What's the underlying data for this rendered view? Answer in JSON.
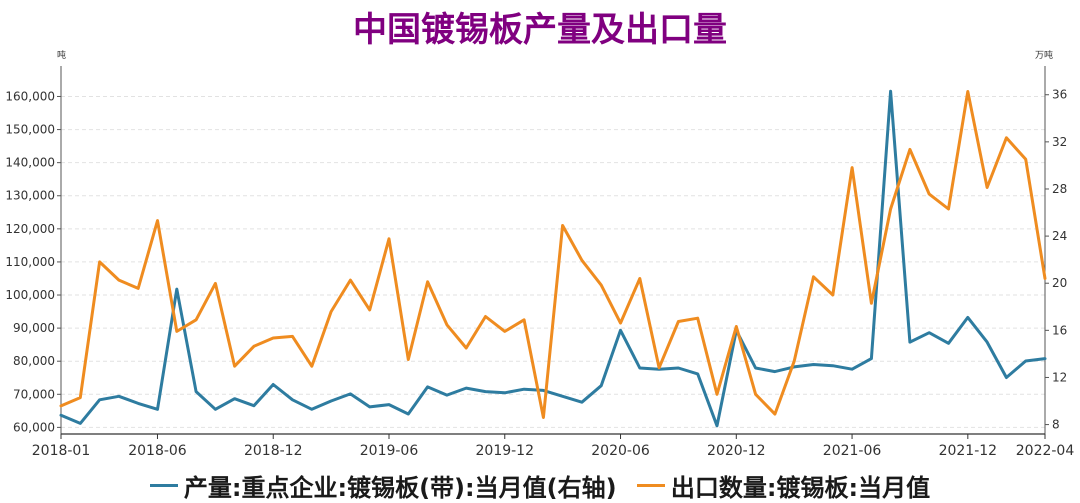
{
  "chart_data": {
    "type": "line",
    "title": "中国镀锡板产量及出口量",
    "left_unit": "吨",
    "right_unit": "万吨",
    "x": [
      "2018-01",
      "2018-02",
      "2018-03",
      "2018-04",
      "2018-05",
      "2018-06",
      "2018-07",
      "2018-08",
      "2018-09",
      "2018-10",
      "2018-11",
      "2018-12",
      "2019-01",
      "2019-02",
      "2019-03",
      "2019-04",
      "2019-05",
      "2019-06",
      "2019-07",
      "2019-08",
      "2019-09",
      "2019-10",
      "2019-11",
      "2019-12",
      "2020-01",
      "2020-02",
      "2020-03",
      "2020-04",
      "2020-05",
      "2020-06",
      "2020-07",
      "2020-08",
      "2020-09",
      "2020-10",
      "2020-11",
      "2020-12",
      "2021-01",
      "2021-02",
      "2021-03",
      "2021-04",
      "2021-05",
      "2021-06",
      "2021-07",
      "2021-08",
      "2021-09",
      "2021-10",
      "2021-11",
      "2021-12",
      "2022-01",
      "2022-02",
      "2022-03",
      "2022-04"
    ],
    "x_tick_labels": [
      "2018-01",
      "2018-06",
      "2018-12",
      "2019-06",
      "2019-12",
      "2020-06",
      "2020-12",
      "2021-06",
      "2021-12",
      "2022-04"
    ],
    "left_axis": {
      "min": 58000,
      "max": 168000,
      "ticks": [
        60000,
        70000,
        80000,
        90000,
        100000,
        110000,
        120000,
        130000,
        140000,
        150000,
        160000
      ],
      "tick_labels": [
        "60,000",
        "70,000",
        "80,000",
        "90,000",
        "100,000",
        "110,000",
        "120,000",
        "130,000",
        "140,000",
        "150,000",
        "160,000"
      ]
    },
    "right_axis": {
      "min": 7.2,
      "max": 38.1,
      "ticks": [
        8,
        12,
        16,
        20,
        24,
        28,
        32,
        36
      ],
      "tick_labels": [
        "8",
        "12",
        "16",
        "20",
        "24",
        "28",
        "32",
        "36"
      ]
    },
    "grid": true,
    "legend_position": "bottom",
    "series": [
      {
        "name": "产量:重点企业:镀锡板(带):当月值(右轴)",
        "axis": "right",
        "color": "#2e7ca0",
        "values": [
          8.8,
          8.1,
          10.1,
          10.4,
          9.8,
          9.3,
          19.5,
          10.8,
          9.3,
          10.2,
          9.6,
          11.4,
          10.1,
          9.3,
          10,
          10.6,
          9.5,
          9.7,
          8.9,
          11.2,
          10.5,
          11.1,
          10.8,
          10.7,
          11,
          10.9,
          10.4,
          9.9,
          11.3,
          16,
          12.8,
          12.7,
          12.8,
          12.3,
          7.9,
          16,
          12.8,
          12.5,
          12.9,
          13.1,
          13,
          12.7,
          13.6,
          36.3,
          15,
          15.8,
          14.9,
          17.1,
          15,
          12,
          13.4,
          13.6
        ]
      },
      {
        "name": "出口数量:镀锡板:当月值",
        "axis": "left",
        "color": "#ef8c20",
        "values": [
          66500,
          69000,
          110000,
          104500,
          102000,
          122500,
          89000,
          92500,
          103500,
          78500,
          84500,
          87000,
          87500,
          78500,
          95000,
          104500,
          95500,
          117000,
          80500,
          104000,
          91000,
          84000,
          93500,
          89000,
          92500,
          63000,
          121000,
          110500,
          103000,
          91500,
          105000,
          78000,
          92000,
          93000,
          70000,
          90500,
          70000,
          64000,
          80000,
          105500,
          100000,
          138500,
          97500,
          126000,
          144000,
          130500,
          126000,
          161500,
          132500,
          147500,
          141000,
          105000
        ]
      }
    ]
  }
}
